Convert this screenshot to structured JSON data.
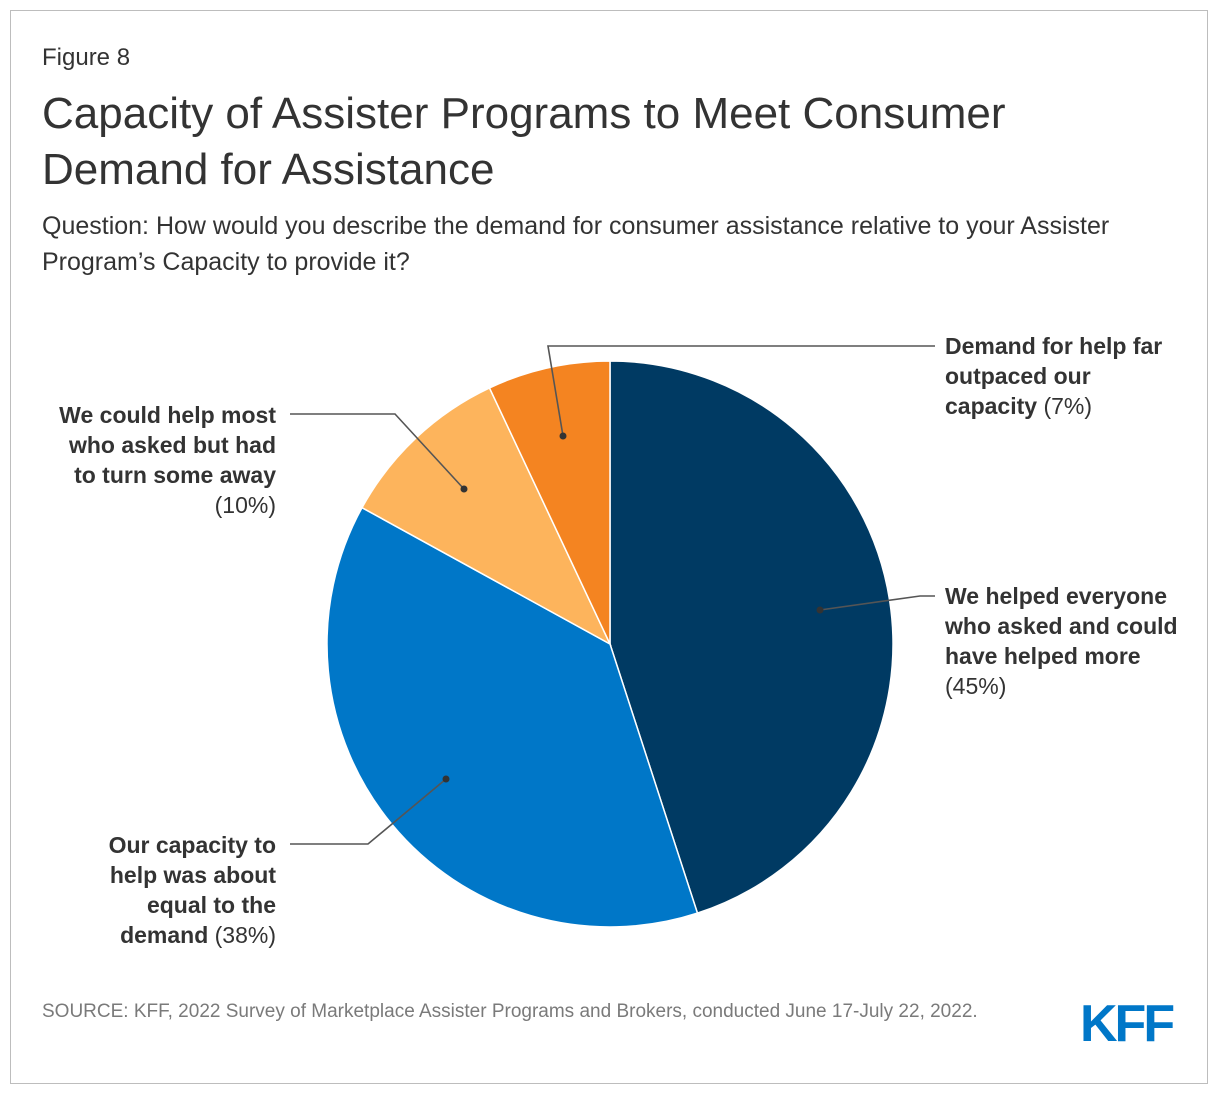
{
  "figure_label": "Figure 8",
  "title": "Capacity of Assister Programs to Meet Consumer Demand for Assistance",
  "subtitle": "Question: How would you describe the demand for consumer assistance relative to your Assister Program’s Capacity to provide it?",
  "source": "SOURCE: KFF, 2022 Survey of Marketplace Assister Programs and Brokers, conducted June 17-July 22, 2022.",
  "logo": "KFF",
  "colors": {
    "logo": "#0077c8",
    "leader_line": "#555555",
    "slice_border": "#ffffff"
  },
  "chart_data": {
    "type": "pie",
    "start_angle": "12 o'clock",
    "direction": "clockwise",
    "slices": [
      {
        "bold": "We helped everyone who asked and could have helped more",
        "pct_text": "(45%)",
        "value": 45,
        "color": "#003a63"
      },
      {
        "bold": "Our capacity to help was about equal to the demand",
        "pct_text": "(38%)",
        "value": 38,
        "color": "#0077c8"
      },
      {
        "bold": "We could help most who asked but had to turn some away",
        "pct_text": "(10%)",
        "value": 10,
        "color": "#fdb45c"
      },
      {
        "bold": "Demand for help far outpaced our capacity",
        "pct_text": "(7%)",
        "value": 7,
        "color": "#f48421"
      }
    ]
  }
}
